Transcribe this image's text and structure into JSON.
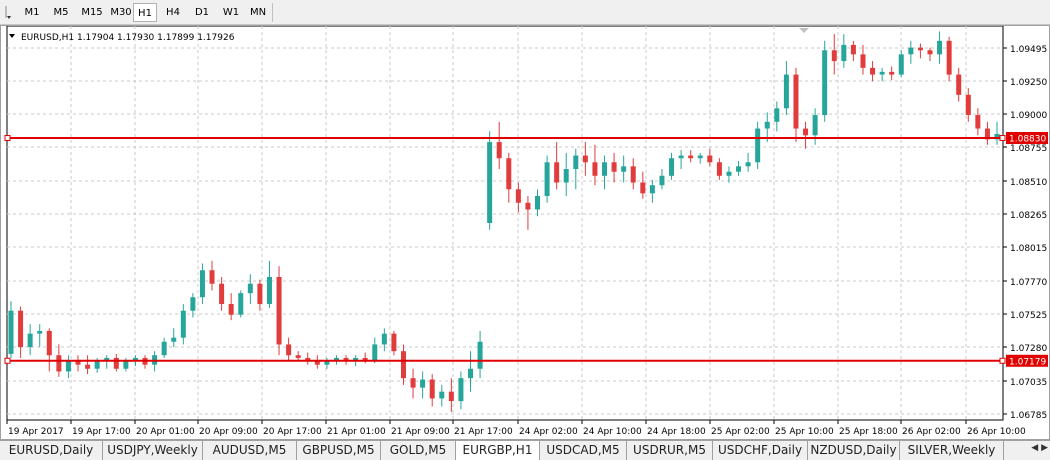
{
  "toolbar": {
    "timeframes": [
      "M1",
      "M5",
      "M15",
      "M30",
      "H1",
      "H4",
      "D1",
      "W1",
      "MN"
    ],
    "active": "H1"
  },
  "chart": {
    "symbol_line": "EURUSD,H1  1.17904 1.17930 1.17899 1.17926",
    "price_labels": [
      "1.09495",
      "1.09250",
      "1.09000",
      "1.08755",
      "1.08510",
      "1.08265",
      "1.08015",
      "1.07770",
      "1.07525",
      "1.07280",
      "1.07035",
      "1.06785"
    ],
    "time_labels": [
      "19 Apr 2017",
      "19 Apr 17:00",
      "20 Apr 01:00",
      "20 Apr 09:00",
      "20 Apr 17:00",
      "21 Apr 01:00",
      "21 Apr 09:00",
      "21 Apr 17:00",
      "24 Apr 02:00",
      "24 Apr 10:00",
      "24 Apr 18:00",
      "25 Apr 02:00",
      "25 Apr 10:00",
      "25 Apr 18:00",
      "26 Apr 02:00",
      "26 Apr 10:00"
    ],
    "hline_upper_label": "1.08830",
    "hline_lower_label": "1.07179",
    "colors": {
      "bull": "#26a69a",
      "bear": "#e03c3c",
      "hline": "#e00000",
      "grid": "#c8c8c8"
    }
  },
  "chart_data": {
    "type": "candlestick",
    "series": [
      {
        "name": "EURUSD,H1",
        "ohlc": [
          [
            1.0723,
            1.0762,
            1.072,
            1.0755
          ],
          [
            1.0755,
            1.0758,
            1.072,
            1.0728
          ],
          [
            1.0728,
            1.0745,
            1.0722,
            1.0738
          ],
          [
            1.0738,
            1.0745,
            1.0728,
            1.074
          ],
          [
            1.074,
            1.0742,
            1.071,
            1.0722
          ],
          [
            1.0722,
            1.073,
            1.0706,
            1.071
          ],
          [
            1.071,
            1.0722,
            1.0705,
            1.0718
          ],
          [
            1.0718,
            1.0722,
            1.071,
            1.0715
          ],
          [
            1.0715,
            1.0722,
            1.0708,
            1.0712
          ],
          [
            1.0712,
            1.072,
            1.0709,
            1.0718
          ],
          [
            1.0718,
            1.0722,
            1.0712,
            1.072
          ],
          [
            1.072,
            1.0723,
            1.071,
            1.0712
          ],
          [
            1.0712,
            1.072,
            1.071,
            1.0718
          ],
          [
            1.0718,
            1.0722,
            1.0714,
            1.072
          ],
          [
            1.072,
            1.0722,
            1.0712,
            1.0715
          ],
          [
            1.0715,
            1.0725,
            1.071,
            1.0722
          ],
          [
            1.0722,
            1.0735,
            1.072,
            1.0732
          ],
          [
            1.0732,
            1.0742,
            1.0728,
            1.0735
          ],
          [
            1.0735,
            1.076,
            1.073,
            1.0755
          ],
          [
            1.0755,
            1.0768,
            1.075,
            1.0765
          ],
          [
            1.0765,
            1.079,
            1.076,
            1.0785
          ],
          [
            1.0785,
            1.0792,
            1.077,
            1.0775
          ],
          [
            1.0775,
            1.078,
            1.0755,
            1.076
          ],
          [
            1.076,
            1.0768,
            1.0748,
            1.0752
          ],
          [
            1.0752,
            1.077,
            1.075,
            1.0768
          ],
          [
            1.0768,
            1.0782,
            1.076,
            1.0775
          ],
          [
            1.0775,
            1.0778,
            1.0755,
            1.076
          ],
          [
            1.076,
            1.0792,
            1.0757,
            1.078
          ],
          [
            1.078,
            1.0788,
            1.0722,
            1.073
          ],
          [
            1.073,
            1.0735,
            1.0718,
            1.0722
          ],
          [
            1.0722,
            1.0725,
            1.0718,
            1.072
          ],
          [
            1.072,
            1.0724,
            1.0715,
            1.0718
          ],
          [
            1.0718,
            1.0722,
            1.0712,
            1.0715
          ],
          [
            1.0715,
            1.072,
            1.0712,
            1.0718
          ],
          [
            1.0718,
            1.0722,
            1.0715,
            1.072
          ],
          [
            1.072,
            1.0722,
            1.0715,
            1.0718
          ],
          [
            1.0718,
            1.0722,
            1.0714,
            1.072
          ],
          [
            1.072,
            1.0724,
            1.0716,
            1.0718
          ],
          [
            1.0718,
            1.0735,
            1.0716,
            1.073
          ],
          [
            1.073,
            1.0742,
            1.0725,
            1.0738
          ],
          [
            1.0738,
            1.074,
            1.0722,
            1.0725
          ],
          [
            1.0725,
            1.073,
            1.07,
            1.0705
          ],
          [
            1.0705,
            1.0712,
            1.069,
            1.0698
          ],
          [
            1.0698,
            1.071,
            1.069,
            1.0704
          ],
          [
            1.0704,
            1.0708,
            1.0684,
            1.069
          ],
          [
            1.069,
            1.07,
            1.0684,
            1.0695
          ],
          [
            1.0695,
            1.0705,
            1.068,
            1.0688
          ],
          [
            1.0688,
            1.071,
            1.0682,
            1.0705
          ],
          [
            1.0705,
            1.0725,
            1.0695,
            1.0712
          ],
          [
            1.0712,
            1.074,
            1.0705,
            1.0732
          ],
          [
            1.082,
            1.0888,
            1.0815,
            1.088
          ],
          [
            1.088,
            1.0895,
            1.086,
            1.0868
          ],
          [
            1.0868,
            1.0872,
            1.0835,
            1.0845
          ],
          [
            1.0845,
            1.085,
            1.0828,
            1.0835
          ],
          [
            1.0835,
            1.084,
            1.0815,
            1.083
          ],
          [
            1.083,
            1.0845,
            1.0825,
            1.084
          ],
          [
            1.084,
            1.087,
            1.0835,
            1.0865
          ],
          [
            1.0865,
            1.088,
            1.0845,
            1.085
          ],
          [
            1.085,
            1.0872,
            1.084,
            1.086
          ],
          [
            1.086,
            1.0875,
            1.0845,
            1.087
          ],
          [
            1.087,
            1.088,
            1.0855,
            1.0865
          ],
          [
            1.0865,
            1.0878,
            1.0848,
            1.0855
          ],
          [
            1.0855,
            1.087,
            1.0845,
            1.0865
          ],
          [
            1.0865,
            1.0872,
            1.085,
            1.0858
          ],
          [
            1.0858,
            1.087,
            1.085,
            1.0862
          ],
          [
            1.0862,
            1.0868,
            1.0845,
            1.085
          ],
          [
            1.085,
            1.0858,
            1.0838,
            1.0842
          ],
          [
            1.0842,
            1.0852,
            1.0835,
            1.0848
          ],
          [
            1.0848,
            1.086,
            1.0845,
            1.0855
          ],
          [
            1.0855,
            1.0872,
            1.0852,
            1.0868
          ],
          [
            1.0868,
            1.0874,
            1.086,
            1.087
          ],
          [
            1.087,
            1.0874,
            1.0865,
            1.0868
          ],
          [
            1.0868,
            1.0872,
            1.0864,
            1.087
          ],
          [
            1.087,
            1.0875,
            1.0862,
            1.0865
          ],
          [
            1.0865,
            1.0868,
            1.0852,
            1.0855
          ],
          [
            1.0855,
            1.0862,
            1.085,
            1.0858
          ],
          [
            1.0858,
            1.0866,
            1.0855,
            1.0862
          ],
          [
            1.0862,
            1.0872,
            1.0858,
            1.0865
          ],
          [
            1.0865,
            1.0895,
            1.086,
            1.089
          ],
          [
            1.089,
            1.0902,
            1.088,
            1.0895
          ],
          [
            1.0895,
            1.091,
            1.0888,
            1.0905
          ],
          [
            1.0905,
            1.094,
            1.09,
            1.093
          ],
          [
            1.093,
            1.0935,
            1.088,
            1.089
          ],
          [
            1.089,
            1.0895,
            1.0875,
            1.0885
          ],
          [
            1.0885,
            1.0905,
            1.0878,
            1.09
          ],
          [
            1.09,
            1.0955,
            1.0895,
            1.0948
          ],
          [
            1.0948,
            1.096,
            1.093,
            1.094
          ],
          [
            1.094,
            1.096,
            1.0935,
            1.0952
          ],
          [
            1.0952,
            1.0955,
            1.094,
            1.0945
          ],
          [
            1.0945,
            1.0952,
            1.093,
            1.0935
          ],
          [
            1.0935,
            1.094,
            1.0925,
            1.093
          ],
          [
            1.093,
            1.0935,
            1.0925,
            1.0932
          ],
          [
            1.0932,
            1.0936,
            1.0926,
            1.093
          ],
          [
            1.093,
            1.0948,
            1.0928,
            1.0945
          ],
          [
            1.0945,
            1.0955,
            1.0938,
            1.095
          ],
          [
            1.095,
            1.0953,
            1.0942,
            1.0948
          ],
          [
            1.0948,
            1.095,
            1.094,
            1.0945
          ],
          [
            1.0945,
            1.0962,
            1.0938,
            1.0955
          ],
          [
            1.0955,
            1.0958,
            1.0925,
            1.093
          ],
          [
            1.093,
            1.0935,
            1.091,
            1.0915
          ],
          [
            1.0915,
            1.092,
            1.0895,
            1.09
          ],
          [
            1.09,
            1.0905,
            1.0885,
            1.089
          ],
          [
            1.089,
            1.0895,
            1.0878,
            1.0882
          ],
          [
            1.0882,
            1.0895,
            1.0878,
            1.0886
          ]
        ]
      }
    ],
    "hlines": [
      1.0883,
      1.07179
    ],
    "ylim": [
      1.0674,
      1.0966
    ],
    "grid": true
  },
  "tabs": {
    "items": [
      "EURUSD,Daily",
      "USDJPY,Weekly",
      "AUDUSD,M5",
      "GBPUSD,M5",
      "GOLD,M5",
      "EURGBP,H1",
      "USDCAD,M5",
      "USDRUR,M5",
      "USDCHF,Daily",
      "NZDUSD,Daily",
      "SILVER,Weekly"
    ],
    "active": "EURGBP,H1"
  }
}
